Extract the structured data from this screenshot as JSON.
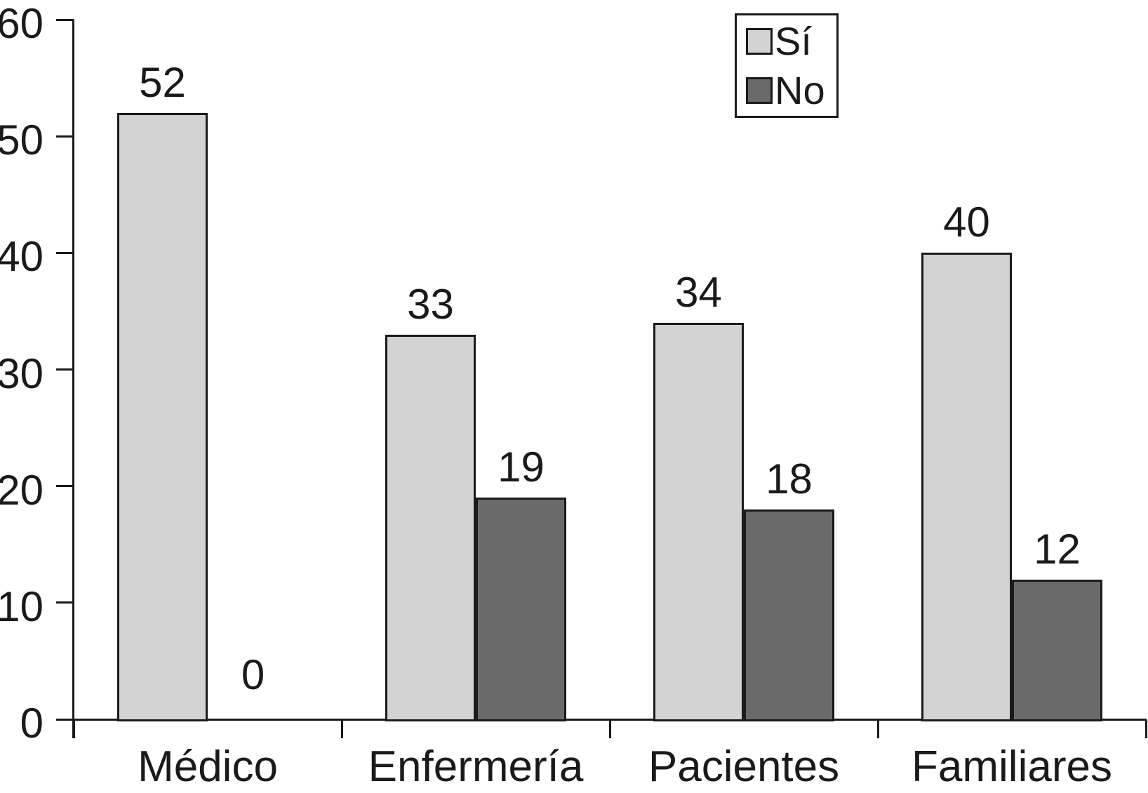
{
  "chart_data": {
    "type": "bar",
    "title": "",
    "xlabel": "",
    "ylabel": "",
    "categories": [
      "Médico",
      "Enfermería",
      "Pacientes",
      "Familiares"
    ],
    "series": [
      {
        "name": "Sí",
        "color": "#d3d3d3",
        "values": [
          52,
          33,
          34,
          40
        ]
      },
      {
        "name": "No",
        "color": "#6a6a6a",
        "values": [
          0,
          19,
          18,
          12
        ]
      }
    ],
    "ylim": [
      0,
      60
    ],
    "yticks": [
      0,
      10,
      20,
      30,
      40,
      50,
      60
    ],
    "grid": false,
    "bar_value_labels": true,
    "legend_position": "top-right"
  },
  "colors": {
    "axis": "#1a1a1a",
    "background": "#ffffff",
    "si_fill": "#d3d3d3",
    "no_fill": "#6a6a6a"
  }
}
